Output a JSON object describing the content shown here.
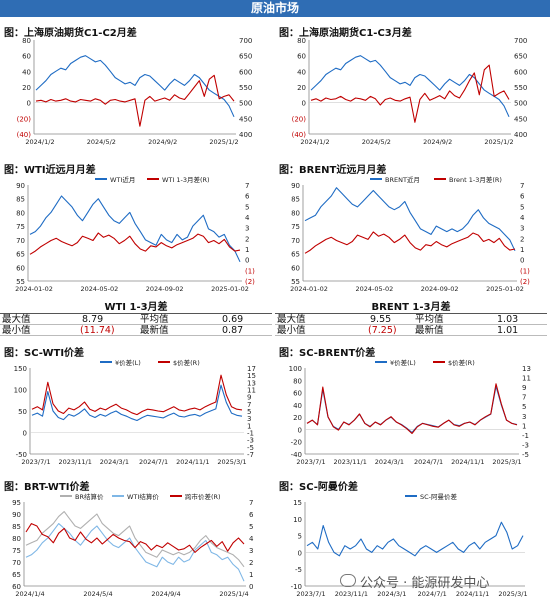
{
  "banner": "原油市场",
  "watermark": "公众号 · 能源研发中心",
  "colors": {
    "blue": "#1f6cc4",
    "red": "#c00000",
    "lightblue": "#7fb7e6",
    "gray": "#b0b0b0",
    "banner": "#2f6db4"
  },
  "stats": [
    {
      "title": "WTI 1-3月差",
      "max_label": "最大值",
      "max_value": "8.79",
      "avg_label": "平均值",
      "avg_value": "0.69",
      "min_label": "最小值",
      "min_value": "(11.74)",
      "latest_label": "最新值",
      "latest_value": "0.87"
    },
    {
      "title": "BRENT 1-3月差",
      "max_label": "最大值",
      "max_value": "9.55",
      "avg_label": "平均值",
      "avg_value": "1.03",
      "min_label": "最小值",
      "min_value": "(7.25)",
      "latest_label": "最新值",
      "latest_value": "1.01"
    }
  ],
  "chart_data": [
    {
      "type": "line",
      "title": "图：上海原油期货C1-C2月差",
      "x_ticks": [
        "2024/1/2",
        "2024/5/2",
        "2024/9/2",
        "2025/1/2"
      ],
      "y_left": {
        "range": [
          -40,
          80
        ],
        "ticks": [
          "(40)",
          "(20)",
          "0",
          "20",
          "40",
          "60",
          "80"
        ]
      },
      "y_right": {
        "range": [
          400,
          700
        ],
        "ticks": [
          "400",
          "450",
          "500",
          "550",
          "600",
          "650",
          "700"
        ]
      },
      "series": [
        {
          "axis": "right",
          "color": "#1f6cc4",
          "values": [
            540,
            555,
            570,
            590,
            600,
            610,
            605,
            625,
            635,
            645,
            650,
            640,
            630,
            635,
            620,
            600,
            580,
            570,
            560,
            565,
            555,
            580,
            590,
            585,
            570,
            555,
            540,
            560,
            575,
            565,
            555,
            570,
            590,
            580,
            560,
            540,
            530,
            520,
            510,
            490,
            455
          ]
        },
        {
          "axis": "left",
          "color": "#c00000",
          "values": [
            2,
            3,
            1,
            4,
            2,
            3,
            5,
            2,
            1,
            4,
            3,
            2,
            5,
            3,
            -2,
            3,
            4,
            2,
            1,
            3,
            5,
            -30,
            3,
            8,
            2,
            4,
            6,
            3,
            10,
            6,
            4,
            12,
            20,
            28,
            8,
            30,
            35,
            5,
            8,
            10,
            2
          ]
        }
      ]
    },
    {
      "type": "line",
      "title": "图：上海原油期货C1-C3月差",
      "x_ticks": [
        "2024/1/2",
        "2024/5/2",
        "2024/9/2",
        "2025/1/2"
      ],
      "y_left": {
        "range": [
          -40,
          80
        ],
        "ticks": [
          "(40)",
          "(20)",
          "0",
          "20",
          "40",
          "60",
          "80"
        ]
      },
      "y_right": {
        "range": [
          400,
          700
        ],
        "ticks": [
          "400",
          "450",
          "500",
          "550",
          "600",
          "650",
          "700"
        ]
      },
      "series": [
        {
          "axis": "right",
          "color": "#1f6cc4",
          "values": [
            540,
            555,
            570,
            590,
            600,
            610,
            605,
            625,
            635,
            645,
            650,
            640,
            630,
            635,
            620,
            600,
            580,
            570,
            560,
            565,
            555,
            580,
            590,
            585,
            570,
            555,
            540,
            560,
            575,
            565,
            555,
            570,
            590,
            580,
            560,
            540,
            530,
            520,
            510,
            490,
            455
          ]
        },
        {
          "axis": "left",
          "color": "#c00000",
          "values": [
            3,
            5,
            2,
            6,
            4,
            5,
            8,
            4,
            2,
            6,
            5,
            3,
            8,
            5,
            -3,
            4,
            6,
            3,
            2,
            5,
            7,
            -25,
            4,
            12,
            3,
            6,
            9,
            5,
            15,
            9,
            6,
            16,
            28,
            38,
            10,
            42,
            48,
            8,
            12,
            15,
            4
          ]
        }
      ]
    },
    {
      "type": "line",
      "title": "图：WTI近远月月差",
      "x_ticks": [
        "2024-01-02",
        "2024-05-02",
        "2024-09-02",
        "2025-01-02"
      ],
      "y_left": {
        "range": [
          55,
          90
        ],
        "ticks": [
          "55",
          "60",
          "65",
          "70",
          "75",
          "80",
          "85",
          "90"
        ]
      },
      "y_right": {
        "range": [
          -2,
          7
        ],
        "ticks": [
          "(2)",
          "(1)",
          "0",
          "1",
          "2",
          "3",
          "4",
          "5",
          "6",
          "7"
        ]
      },
      "legend": [
        "WTI近月",
        "WTI 1-3月差(R)"
      ],
      "series": [
        {
          "axis": "left",
          "color": "#1f6cc4",
          "values": [
            72,
            73,
            75,
            78,
            80,
            83,
            86,
            84,
            82,
            79,
            77,
            80,
            83,
            85,
            82,
            79,
            77,
            76,
            78,
            80,
            76,
            73,
            70,
            69,
            68,
            72,
            70,
            69,
            72,
            70,
            71,
            75,
            77,
            79,
            74,
            73,
            71,
            72,
            68,
            66,
            62
          ]
        },
        {
          "axis": "right",
          "color": "#c00000",
          "values": [
            0.5,
            0.8,
            1.2,
            1.5,
            1.8,
            2.0,
            1.7,
            1.5,
            1.3,
            1.6,
            2.2,
            2.0,
            1.8,
            2.5,
            2.1,
            2.3,
            2.0,
            1.5,
            1.8,
            2.2,
            1.5,
            1.0,
            0.8,
            1.3,
            1.2,
            1.6,
            1.3,
            1.1,
            1.4,
            1.6,
            1.8,
            2.0,
            2.4,
            2.2,
            1.6,
            1.8,
            1.5,
            1.9,
            1.2,
            0.8,
            0.9
          ]
        }
      ]
    },
    {
      "type": "line",
      "title": "图：BRENT近远月月差",
      "x_ticks": [
        "2024-01-02",
        "2024-05-02",
        "2024-09-02",
        "2025-01-02"
      ],
      "y_left": {
        "range": [
          55,
          90
        ],
        "ticks": [
          "55",
          "60",
          "65",
          "70",
          "75",
          "80",
          "85",
          "90"
        ]
      },
      "y_right": {
        "range": [
          -2,
          7
        ],
        "ticks": [
          "(2)",
          "(1)",
          "0",
          "1",
          "2",
          "3",
          "4",
          "5",
          "6",
          "7"
        ]
      },
      "legend": [
        "BRENT近月",
        "Brent 1-3月差(R)"
      ],
      "series": [
        {
          "axis": "left",
          "color": "#1f6cc4",
          "values": [
            77,
            78,
            79,
            82,
            84,
            86,
            89,
            87,
            85,
            83,
            82,
            84,
            86,
            88,
            86,
            84,
            82,
            81,
            82,
            84,
            80,
            77,
            74,
            73,
            72,
            75,
            74,
            73,
            74,
            73,
            74,
            76,
            79,
            81,
            78,
            76,
            75,
            74,
            72,
            70,
            66
          ]
        },
        {
          "axis": "right",
          "color": "#c00000",
          "values": [
            0.6,
            0.9,
            1.3,
            1.6,
            1.9,
            2.1,
            1.8,
            1.6,
            1.4,
            1.7,
            2.3,
            2.1,
            1.9,
            2.6,
            2.2,
            2.4,
            2.1,
            1.6,
            1.9,
            2.3,
            1.6,
            1.1,
            0.9,
            1.4,
            1.3,
            1.7,
            1.4,
            1.2,
            1.5,
            1.7,
            1.9,
            2.1,
            2.5,
            2.3,
            1.7,
            1.9,
            1.6,
            2.0,
            1.3,
            0.9,
            1.0
          ]
        }
      ]
    },
    {
      "type": "line",
      "title": "图：SC-WTI价差",
      "x_ticks": [
        "2023/7/1",
        "2023/11/1",
        "2024/3/1",
        "2024/7/1",
        "2024/11/1",
        "2025/3/1"
      ],
      "y_left": {
        "range": [
          -50,
          150
        ],
        "ticks": [
          "-50",
          "0",
          "50",
          "100",
          "150"
        ]
      },
      "y_right": {
        "range": [
          -7,
          17
        ],
        "ticks": [
          "-7",
          "-5",
          "-3",
          "-1",
          "1",
          "3",
          "5",
          "7",
          "9",
          "11",
          "13",
          "15",
          "17"
        ]
      },
      "legend": [
        "¥价差(L)",
        "$价差(R)"
      ],
      "series": [
        {
          "axis": "left",
          "color": "#1f6cc4",
          "values": [
            40,
            45,
            38,
            95,
            50,
            35,
            30,
            42,
            38,
            45,
            55,
            40,
            35,
            42,
            38,
            45,
            50,
            42,
            38,
            32,
            28,
            35,
            40,
            38,
            36,
            34,
            40,
            45,
            38,
            36,
            40,
            42,
            38,
            45,
            50,
            55,
            110,
            70,
            45,
            40,
            38
          ]
        },
        {
          "axis": "right",
          "color": "#c00000",
          "values": [
            5.5,
            6.2,
            5.3,
            13,
            7,
            5,
            4.3,
            5.8,
            5.3,
            6.2,
            7.5,
            5.5,
            4.9,
            5.8,
            5.3,
            6.2,
            6.9,
            5.8,
            5.3,
            4.5,
            4,
            4.9,
            5.5,
            5.3,
            5,
            4.8,
            5.5,
            6.2,
            5.3,
            5,
            5.5,
            5.8,
            5.3,
            6.2,
            6.9,
            7.5,
            15,
            9.5,
            6.2,
            5.5,
            5.3
          ]
        }
      ]
    },
    {
      "type": "line",
      "title": "图：SC-BRENT价差",
      "x_ticks": [
        "2023/7/1",
        "2023/11/1",
        "2024/3/1",
        "2024/7/1",
        "2024/11/1",
        "2025/3/1"
      ],
      "y_left": {
        "range": [
          -40,
          100
        ],
        "ticks": [
          "-40",
          "-20",
          "0",
          "20",
          "40",
          "60",
          "80",
          "100"
        ]
      },
      "y_right": {
        "range": [
          -5,
          13
        ],
        "ticks": [
          "-5",
          "-3",
          "-1",
          "1",
          "3",
          "5",
          "7",
          "9",
          "11",
          "13"
        ]
      },
      "legend": [
        "¥价差(L)",
        "$价差(R)"
      ],
      "series": [
        {
          "axis": "left",
          "color": "#1f6cc4",
          "values": [
            10,
            15,
            8,
            65,
            20,
            5,
            0,
            12,
            8,
            15,
            25,
            10,
            5,
            12,
            8,
            15,
            20,
            12,
            8,
            2,
            -5,
            5,
            10,
            8,
            6,
            4,
            10,
            15,
            8,
            6,
            10,
            12,
            8,
            15,
            20,
            25,
            70,
            40,
            15,
            10,
            8
          ]
        },
        {
          "axis": "right",
          "color": "#c00000",
          "values": [
            1.4,
            2.1,
            1.1,
            9,
            2.8,
            0.7,
            0,
            1.7,
            1.1,
            2.1,
            3.4,
            1.4,
            0.7,
            1.7,
            1.1,
            2.1,
            2.8,
            1.7,
            1.1,
            0.3,
            -0.7,
            0.7,
            1.4,
            1.1,
            0.8,
            0.6,
            1.4,
            2.1,
            1.1,
            0.8,
            1.4,
            1.7,
            1.1,
            2.1,
            2.8,
            3.4,
            9.7,
            5.5,
            2.1,
            1.4,
            1.1
          ]
        }
      ]
    },
    {
      "type": "line",
      "title": "图：BRT-WTI价差",
      "x_ticks": [
        "2024/1/4",
        "2024/5/4",
        "2024/9/4",
        "2025/1/4"
      ],
      "y_left": {
        "range": [
          60,
          95
        ],
        "ticks": [
          "60",
          "65",
          "70",
          "75",
          "80",
          "85",
          "90",
          "95"
        ]
      },
      "y_right": {
        "range": [
          0,
          7
        ],
        "ticks": [
          "0",
          "1",
          "2",
          "3",
          "4",
          "5",
          "6",
          "7"
        ]
      },
      "legend": [
        "BR结算价",
        "WTI结算价",
        "跨市价差(R)"
      ],
      "series": [
        {
          "axis": "left",
          "color": "#b0b0b0",
          "values": [
            77,
            78,
            79,
            82,
            84,
            86,
            89,
            91,
            88,
            85,
            84,
            86,
            88,
            90,
            86,
            84,
            82,
            81,
            83,
            85,
            80,
            77,
            74,
            73,
            72,
            75,
            74,
            73,
            74,
            73,
            74,
            76,
            79,
            81,
            78,
            76,
            75,
            74,
            73,
            71,
            68
          ]
        },
        {
          "axis": "left",
          "color": "#7fb7e6",
          "values": [
            72,
            73,
            75,
            78,
            80,
            83,
            86,
            84,
            82,
            79,
            77,
            80,
            83,
            85,
            82,
            79,
            77,
            76,
            78,
            80,
            76,
            73,
            70,
            69,
            68,
            72,
            70,
            69,
            72,
            70,
            71,
            75,
            77,
            79,
            74,
            73,
            71,
            72,
            69,
            67,
            62
          ]
        },
        {
          "axis": "right",
          "color": "#c00000",
          "values": [
            4.5,
            5.2,
            5.0,
            4.3,
            4.1,
            3.6,
            4.4,
            4.8,
            4.0,
            3.8,
            4.5,
            3.9,
            3.6,
            4.0,
            3.5,
            3.9,
            4.3,
            4.0,
            3.8,
            3.7,
            3.2,
            3.7,
            3.5,
            3.0,
            3.4,
            3.2,
            3.6,
            3.3,
            3.0,
            3.1,
            3.4,
            2.8,
            3.2,
            3.5,
            3.8,
            3.3,
            3.7,
            2.9,
            3.6,
            4.0,
            3.5
          ]
        }
      ]
    },
    {
      "type": "line",
      "title": "图：SC-阿曼价差",
      "x_ticks": [
        "2023/7/1",
        "2023/11/1",
        "2024/3/1",
        "2024/7/1",
        "2024/11/1",
        "2025/3/1"
      ],
      "y_left": {
        "range": [
          -10,
          15
        ],
        "ticks": [
          "-10",
          "-5",
          "0",
          "5",
          "10",
          "15"
        ]
      },
      "legend": [
        "SC-阿曼价差"
      ],
      "series": [
        {
          "axis": "left",
          "color": "#1f6cc4",
          "values": [
            2,
            3,
            1,
            8,
            3,
            0,
            -1,
            2,
            1,
            2,
            4,
            1,
            0,
            2,
            1,
            3,
            4,
            2,
            1,
            0,
            -1,
            1,
            2,
            1,
            0,
            1,
            2,
            3,
            1,
            0,
            2,
            3,
            1,
            3,
            4,
            5,
            9,
            6,
            1,
            2,
            5
          ]
        }
      ]
    }
  ]
}
